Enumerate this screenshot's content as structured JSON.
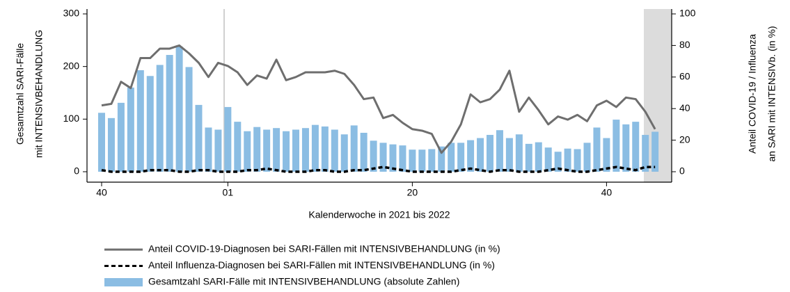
{
  "chart_data": {
    "type": "combo",
    "ylabel": [
      "Gesamtzahl SARI-Fälle",
      "mit INTENSIVBEHANDLUNG"
    ],
    "y2label": [
      "Anteil COVID-19 / Influenza",
      "an SARI mit INTENSIVb. (in %)"
    ],
    "xlabel": "Kalenderwoche in 2021 bis 2022",
    "categories": [
      "40",
      null,
      null,
      null,
      null,
      null,
      null,
      null,
      null,
      null,
      null,
      null,
      null,
      "01",
      null,
      null,
      null,
      null,
      null,
      null,
      null,
      null,
      null,
      null,
      null,
      null,
      null,
      null,
      null,
      null,
      null,
      null,
      "20",
      null,
      null,
      null,
      null,
      null,
      null,
      null,
      null,
      null,
      null,
      null,
      null,
      null,
      null,
      null,
      null,
      null,
      null,
      null,
      "40",
      null,
      null,
      null,
      null,
      null
    ],
    "ylim": [
      0,
      300
    ],
    "yticks": [
      0,
      100,
      200,
      300
    ],
    "y2lim": [
      0,
      100
    ],
    "y2ticks": [
      0,
      20,
      40,
      60,
      80,
      100
    ],
    "series": [
      {
        "name": "Anteil COVID-19-Diagnosen bei SARI-Fällen mit INTENSIVBEHANDLUNG (in %)",
        "type": "line",
        "axis": "y2",
        "color": "#6e6e6e",
        "dashed": false,
        "values": [
          42,
          43,
          57,
          53,
          72,
          72,
          78,
          78,
          80,
          75,
          69,
          60,
          69,
          67,
          63,
          55,
          61,
          59,
          71,
          58,
          60,
          63,
          63,
          63,
          64,
          62,
          55,
          46,
          47,
          34,
          36,
          31,
          27,
          26,
          24,
          12,
          19,
          30,
          49,
          44,
          46,
          52,
          64,
          38,
          47,
          39,
          30,
          35,
          33,
          36,
          32,
          42,
          45,
          41,
          47,
          46,
          38,
          27
        ]
      },
      {
        "name": "Anteil Influenza-Diagnosen bei SARI-Fällen mit INTENSIVBEHANDLUNG (in %)",
        "type": "line",
        "axis": "y2",
        "color": "#000000",
        "dashed": true,
        "values": [
          1,
          0,
          0,
          0,
          0,
          1,
          1,
          1,
          0,
          0,
          1,
          1,
          0,
          0,
          0,
          1,
          1,
          2,
          1,
          0,
          0,
          0,
          1,
          1,
          0,
          0,
          1,
          1,
          2,
          3,
          2,
          1,
          0,
          0,
          0,
          0,
          0,
          1,
          2,
          1,
          0,
          1,
          1,
          0,
          0,
          0,
          1,
          2,
          1,
          0,
          0,
          1,
          2,
          3,
          2,
          1,
          3,
          3
        ]
      },
      {
        "name": "Gesamtzahl SARI-Fälle mit INTENSIVBEHANDLUNG (absolute Zahlen)",
        "type": "bar",
        "axis": "y",
        "color": "#8bbde3",
        "values": [
          112,
          102,
          131,
          160,
          193,
          182,
          203,
          222,
          238,
          199,
          127,
          84,
          80,
          123,
          95,
          77,
          85,
          80,
          83,
          77,
          80,
          83,
          89,
          86,
          80,
          71,
          88,
          74,
          59,
          55,
          52,
          50,
          42,
          42,
          43,
          48,
          55,
          55,
          60,
          64,
          70,
          79,
          64,
          71,
          53,
          56,
          46,
          38,
          44,
          43,
          55,
          84,
          64,
          99,
          90,
          95,
          70,
          76
        ]
      }
    ]
  }
}
